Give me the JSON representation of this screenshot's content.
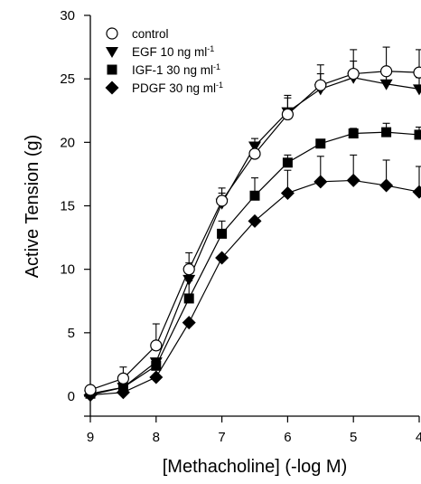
{
  "chart_data": {
    "type": "line",
    "xlabel": "[Methacholine] (-log M)",
    "ylabel": "Active Tension (g)",
    "xlim": [
      9,
      4
    ],
    "ylim": [
      0,
      30
    ],
    "x_reversed": true,
    "xticks": [
      9,
      8,
      7,
      6,
      5,
      4
    ],
    "yticks": [
      0,
      5,
      10,
      15,
      20,
      25,
      30
    ],
    "legend_position": "top-left",
    "x": [
      9,
      8.5,
      8,
      7.5,
      7,
      6.5,
      6,
      5.5,
      5,
      4.5,
      4
    ],
    "series": [
      {
        "name": "control",
        "legend_main": "control",
        "legend_sup": "",
        "marker": "circle-open",
        "values": [
          0.5,
          1.4,
          4.0,
          10.0,
          15.4,
          19.1,
          22.2,
          24.5,
          25.4,
          25.6,
          25.5
        ],
        "errors": [
          0.0,
          0.9,
          1.7,
          1.3,
          1.0,
          0.0,
          1.3,
          1.6,
          1.9,
          1.9,
          1.8
        ]
      },
      {
        "name": "EGF",
        "legend_main": "EGF 10 ng ml",
        "legend_sup": "-1",
        "marker": "triangle-down",
        "values": [
          0.1,
          0.7,
          2.7,
          9.2,
          15.2,
          19.7,
          22.4,
          24.2,
          25.1,
          24.6,
          24.2
        ],
        "errors": [
          0.0,
          0.0,
          0.0,
          1.3,
          0.8,
          0.6,
          1.3,
          1.2,
          1.3,
          0.9,
          0.9
        ]
      },
      {
        "name": "IGF-1",
        "legend_main": "IGF-1 30 ng ml",
        "legend_sup": "-1",
        "marker": "square",
        "values": [
          0.2,
          0.7,
          2.4,
          7.7,
          12.8,
          15.8,
          18.4,
          19.9,
          20.7,
          20.8,
          20.6
        ],
        "errors": [
          0.0,
          0.0,
          0.0,
          1.4,
          1.0,
          1.4,
          0.6,
          0.3,
          0.4,
          0.7,
          0.6
        ]
      },
      {
        "name": "PDGF",
        "legend_main": "PDGF 30 ng ml",
        "legend_sup": "-1",
        "marker": "diamond",
        "values": [
          0.1,
          0.3,
          1.5,
          5.8,
          10.9,
          13.8,
          16.0,
          16.9,
          17.0,
          16.6,
          16.1
        ],
        "errors": [
          0.0,
          0.0,
          0.0,
          0.0,
          0.0,
          0.0,
          1.8,
          2.0,
          2.0,
          2.0,
          2.0
        ]
      }
    ]
  }
}
